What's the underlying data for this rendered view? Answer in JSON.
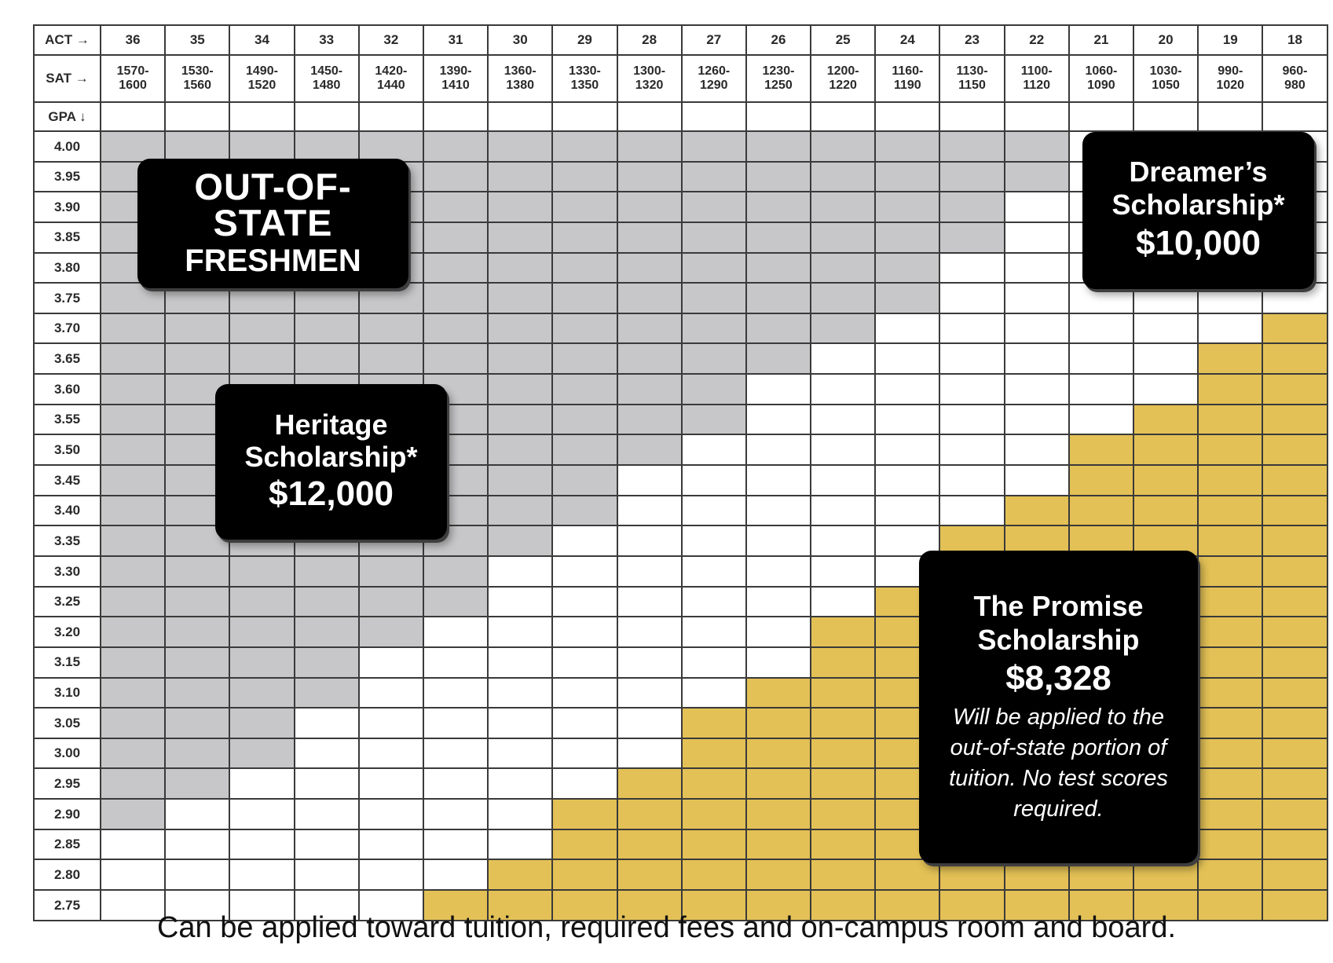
{
  "chart_data": {
    "type": "table",
    "title": "OUT-OF-STATE FRESHMEN",
    "row_label_act": "ACT →",
    "row_label_sat": "SAT →",
    "row_label_gpa": "GPA ↓",
    "act": [
      "36",
      "35",
      "34",
      "33",
      "32",
      "31",
      "30",
      "29",
      "28",
      "27",
      "26",
      "25",
      "24",
      "23",
      "22",
      "21",
      "20",
      "19",
      "18"
    ],
    "sat": [
      "1570-\n1600",
      "1530-\n1560",
      "1490-\n1520",
      "1450-\n1480",
      "1420-\n1440",
      "1390-\n1410",
      "1360-\n1380",
      "1330-\n1350",
      "1300-\n1320",
      "1260-\n1290",
      "1230-\n1250",
      "1200-\n1220",
      "1160-\n1190",
      "1130-\n1150",
      "1100-\n1120",
      "1060-\n1090",
      "1030-\n1050",
      "990-\n1020",
      "960-\n980"
    ],
    "gpa": [
      "4.00",
      "3.95",
      "3.90",
      "3.85",
      "3.80",
      "3.75",
      "3.70",
      "3.65",
      "3.60",
      "3.55",
      "3.50",
      "3.45",
      "3.40",
      "3.35",
      "3.30",
      "3.25",
      "3.20",
      "3.15",
      "3.10",
      "3.05",
      "3.00",
      "2.95",
      "2.90",
      "2.85",
      "2.80",
      "2.75"
    ],
    "heritage_last_col_by_row": [
      14,
      14,
      13,
      13,
      12,
      12,
      11,
      10,
      9,
      9,
      8,
      7,
      7,
      6,
      5,
      5,
      4,
      3,
      3,
      2,
      2,
      1,
      0,
      -1,
      -1,
      -1
    ],
    "promise_first_col_by_row": [
      19,
      19,
      19,
      19,
      19,
      19,
      18,
      17,
      17,
      16,
      15,
      15,
      14,
      13,
      13,
      12,
      11,
      11,
      10,
      9,
      9,
      8,
      7,
      7,
      6,
      5
    ],
    "tiers": [
      {
        "name": "Heritage Scholarship*",
        "amount": "$12,000",
        "color": "#c7c7c9"
      },
      {
        "name": "Dreamer’s Scholarship*",
        "amount": "$10,000",
        "color": "#ffffff"
      },
      {
        "name": "The Promise Scholarship",
        "amount": "$8,328",
        "color": "#e3c156"
      }
    ]
  },
  "callouts": {
    "oos_line1": "OUT-OF-",
    "oos_line2": "STATE",
    "oos_line3": "FRESHMEN",
    "heritage_line1": "Heritage",
    "heritage_line2": "Scholarship*",
    "heritage_amount": "$12,000",
    "dreamer_line1": "Dreamer’s",
    "dreamer_line2": "Scholarship*",
    "dreamer_amount": "$10,000",
    "promise_line1": "The Promise",
    "promise_line2": "Scholarship",
    "promise_amount": "$8,328",
    "promise_note": "Will be applied to the out-of-state portion of tuition. No test scores required."
  },
  "footnote": "Can be applied toward tuition, required fees and on-campus room and board."
}
